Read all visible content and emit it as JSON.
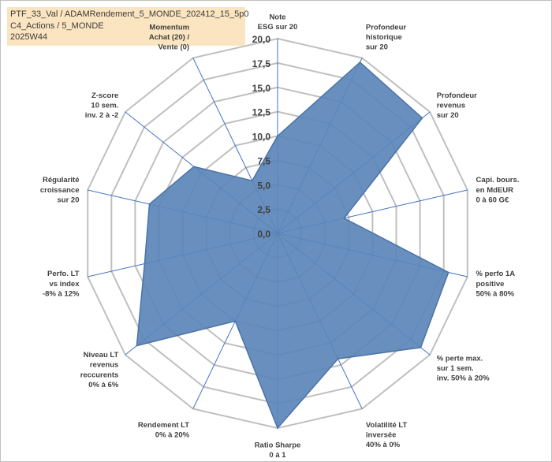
{
  "title": {
    "lines": [
      "PTF_33_Val / ADAMRendement_5_MONDE_202412_15_5p0",
      "C4_Actions / 5_MONDE",
      "2025W44"
    ]
  },
  "colors": {
    "fill": "#5b86b8",
    "stroke": "#4a73a6",
    "grid": "#bfbfbf",
    "spoke": "#4472c4",
    "title_bg": "#fbe5c0"
  },
  "chart_data": {
    "type": "radar",
    "rmin": 0,
    "rmax": 20,
    "ticks": [
      "0,0",
      "2,5",
      "5,0",
      "7,5",
      "10,0",
      "12,5",
      "15,0",
      "17,5",
      "20,0"
    ],
    "tick_values": [
      0,
      2.5,
      5,
      7.5,
      10,
      12.5,
      15,
      17.5,
      20
    ],
    "axes": [
      {
        "label": [
          "Note",
          "ESG sur 20"
        ],
        "value": 10.0
      },
      {
        "label": [
          "Profondeur",
          "historique",
          "sur 20"
        ],
        "value": 19.5
      },
      {
        "label": [
          "Profondeur",
          "revenus",
          "sur 20"
        ],
        "value": 19.0
      },
      {
        "label": [
          "Capi. bours.",
          "en MdEUR",
          "0 à 60 G€"
        ],
        "value": 7.0
      },
      {
        "label": [
          "% perfo 1A",
          "positive",
          "50% à 80%"
        ],
        "value": 18.0
      },
      {
        "label": [
          "% perte max.",
          "sur 1 sem.",
          "inv. 50% à 20%"
        ],
        "value": 18.8
      },
      {
        "label": [
          "Volatilité LT",
          "inversée",
          "40% à 0%"
        ],
        "value": 14.3
      },
      {
        "label": [
          "Ratio Sharpe",
          "0 à 1"
        ],
        "value": 20.0
      },
      {
        "label": [
          "Rendement LT",
          "0% à 20%"
        ],
        "value": 10.0
      },
      {
        "label": [
          "Niveau LT",
          "revenus",
          "reccurents",
          "0% à 6%"
        ],
        "value": 18.5
      },
      {
        "label": [
          "Perfo. LT",
          "vs index",
          "-8% à 12%"
        ],
        "value": 14.0
      },
      {
        "label": [
          "Régularité",
          "croissance",
          "sur 20"
        ],
        "value": 13.5
      },
      {
        "label": [
          "Z-score",
          "10 sem.",
          "inv. 2 à -2"
        ],
        "value": 11.0
      },
      {
        "label": [
          "Momentum",
          "Achat (20) /",
          "Vente (0)"
        ],
        "value": 6.0
      }
    ]
  }
}
